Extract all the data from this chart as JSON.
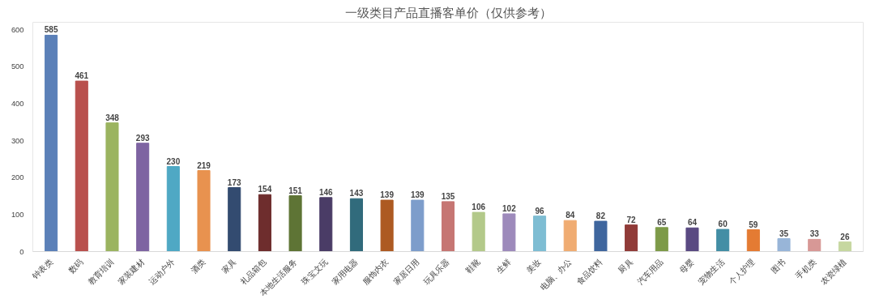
{
  "chart_data": {
    "type": "bar",
    "title": "一级类目产品直播客单价（仅供参考）",
    "categories": [
      "钟表类",
      "数码",
      "教育培训",
      "家装建材",
      "运动户外",
      "酒类",
      "家具",
      "礼品箱包",
      "本地生活服务",
      "珠宝文玩",
      "家用电器",
      "服饰内衣",
      "家居日用",
      "玩具乐器",
      "鞋靴",
      "生鲜",
      "美妆",
      "电脑、办公",
      "食品饮料",
      "厨具",
      "汽车用品",
      "母婴",
      "宠物生活",
      "个人护理",
      "图书",
      "手机类",
      "农资绿植"
    ],
    "values": [
      585,
      461,
      348,
      293,
      230,
      219,
      173,
      154,
      151,
      146,
      143,
      139,
      139,
      135,
      106,
      102,
      96,
      84,
      82,
      72,
      65,
      64,
      60,
      59,
      35,
      33,
      26
    ],
    "colors": [
      "#5b80b8",
      "#b9504d",
      "#9bb460",
      "#7e64a2",
      "#4fa8c4",
      "#e8924f",
      "#334b70",
      "#6e2d2d",
      "#5e7435",
      "#4a3c66",
      "#316b7c",
      "#ad5a22",
      "#7d9dcb",
      "#c67673",
      "#b3c98a",
      "#9d8abb",
      "#7ebdd3",
      "#f0ac72",
      "#3f669e",
      "#903b38",
      "#7d9a48",
      "#5a4a82",
      "#438ea5",
      "#e47b33",
      "#98b5d8",
      "#d79896",
      "#c6d7a0"
    ],
    "ylim": [
      0,
      620
    ],
    "yticks": [
      0,
      100,
      200,
      300,
      400,
      500,
      600
    ],
    "grid": false,
    "data_labels": true
  }
}
